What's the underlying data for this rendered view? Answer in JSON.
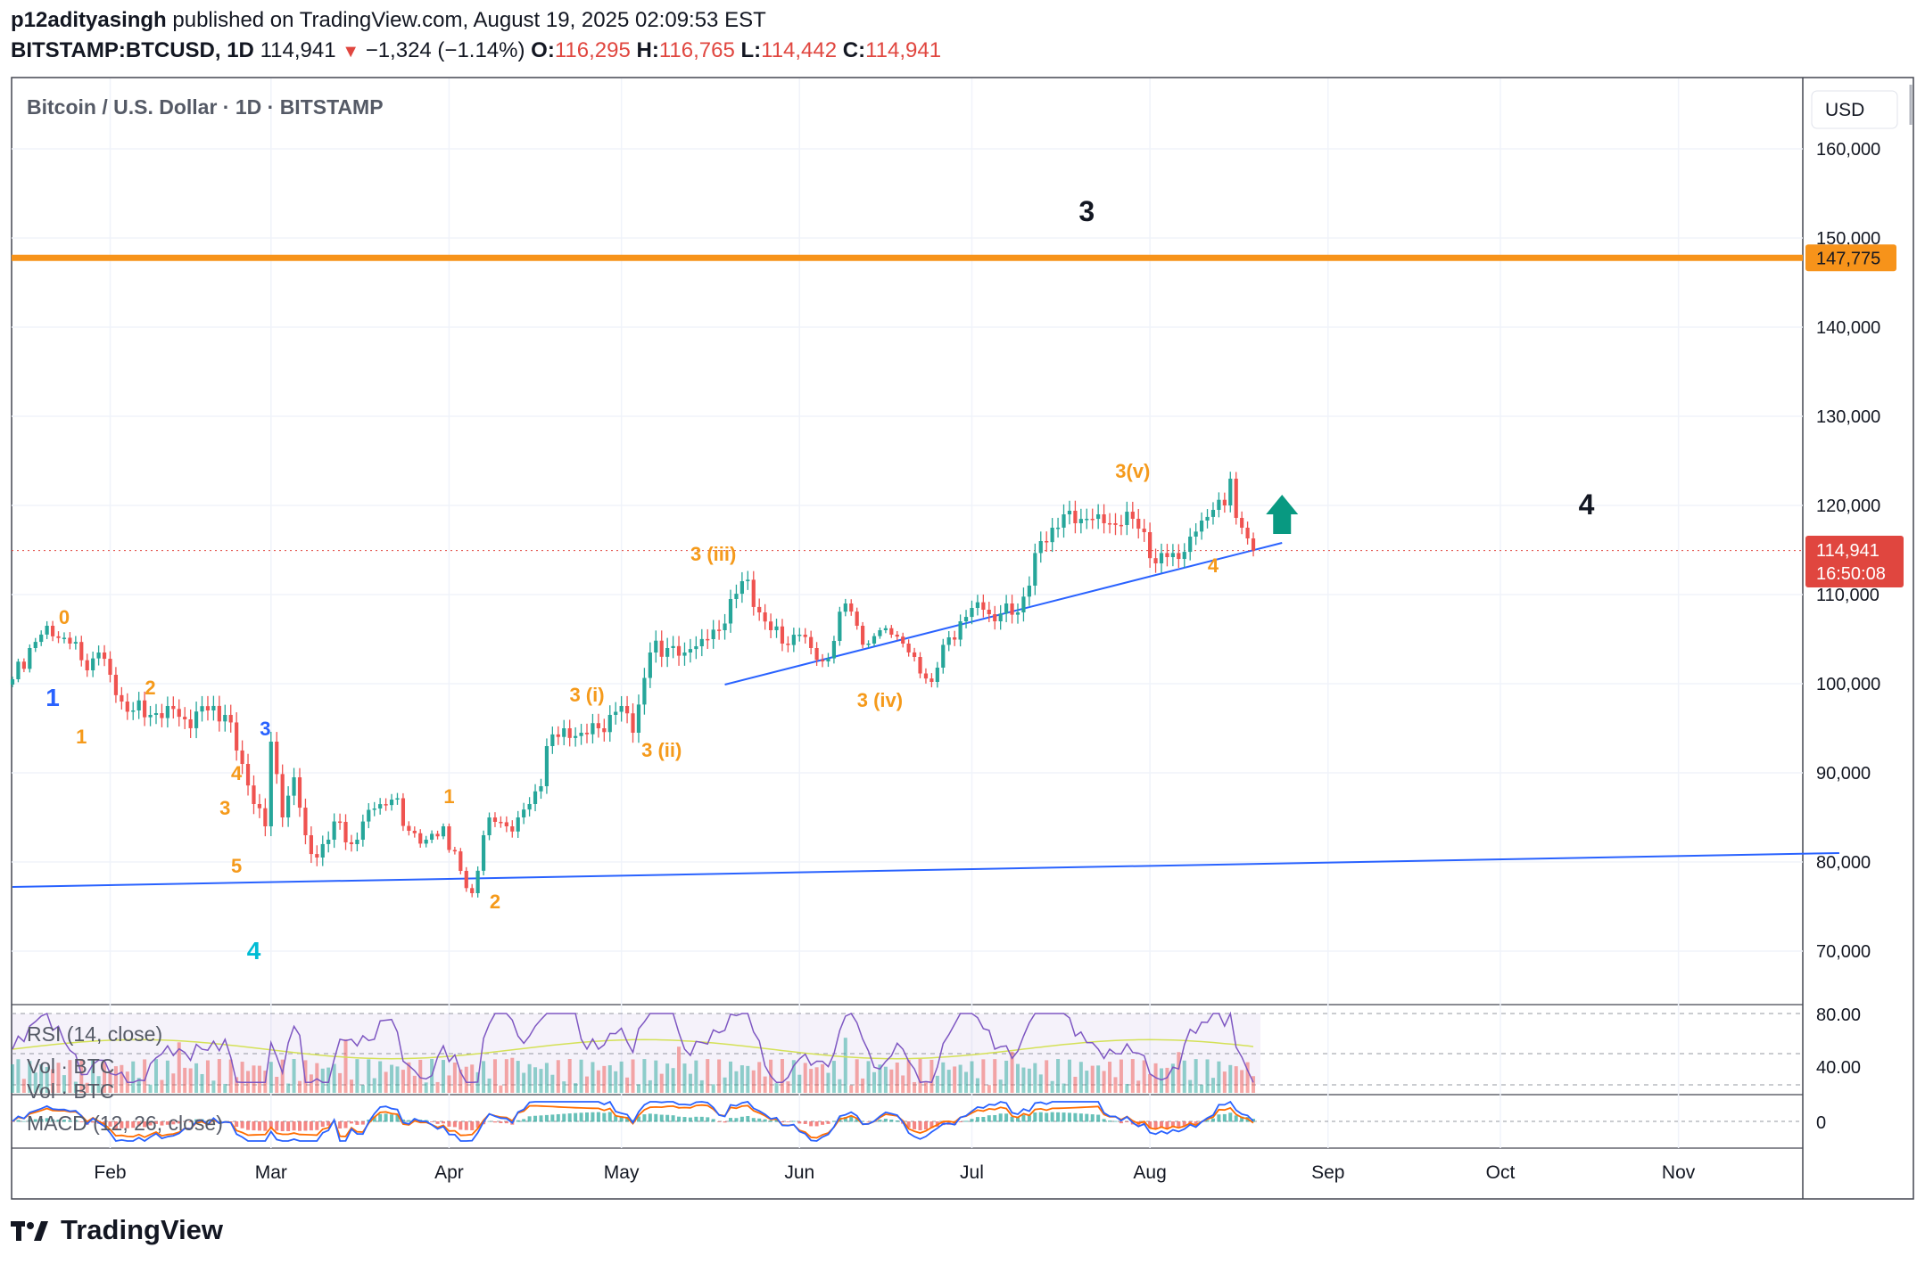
{
  "header": {
    "author": "p12adityasingh",
    "published": "published on TradingView.com, August 19, 2025 02:09:53 EST",
    "symbol": "BITSTAMP:BTCUSD, 1D",
    "last": "114,941",
    "change": "−1,324 (−1.14%)",
    "o_label": "O:",
    "o": "116,295",
    "h_label": "H:",
    "h": "116,765",
    "l_label": "L:",
    "l": "114,442",
    "c_label": "C:",
    "c": "114,941"
  },
  "chart": {
    "title": "Bitcoin / U.S. Dollar · 1D · BITSTAMP",
    "currency": "USD",
    "resistance_label": "147,775",
    "price_label": "114,941",
    "countdown": "16:50:08",
    "rsi_label": "RSI (14, close)",
    "vol_label": "Vol · BTC",
    "vol_label2": "Vol · BTC",
    "macd_label": "MACD (12, 26, close)",
    "rsi_ticks": [
      "80.00",
      "40.00"
    ],
    "macd_tick": "0"
  },
  "footer": {
    "brand": "TradingView"
  },
  "colors": {
    "up": "#26a69a",
    "down": "#ef5350",
    "resistance": "#f7931a",
    "trendline": "#2962ff",
    "wave_orange": "#f59a1b",
    "wave_blue": "#2962ff",
    "wave_cyan": "#00bcd4",
    "arrow": "#089981",
    "rsi": "#7e57c2",
    "rsi_ma": "#d4e157",
    "macd": "#2962ff",
    "signal": "#ff6d00"
  },
  "chart_data": {
    "type": "candlestick",
    "title": "Bitcoin / U.S. Dollar · 1D · BITSTAMP",
    "ylim": [
      62000,
      167000
    ],
    "y_ticks": [
      "160,000",
      "150,000",
      "140,000",
      "130,000",
      "120,000",
      "110,000",
      "100,000",
      "90,000",
      "80,000",
      "70,000"
    ],
    "y_tick_values": [
      160000,
      150000,
      140000,
      130000,
      120000,
      110000,
      100000,
      90000,
      80000,
      70000
    ],
    "x_months": [
      "Feb",
      "Mar",
      "Apr",
      "May",
      "Jun",
      "Jul",
      "Aug",
      "Sep",
      "Oct",
      "Nov"
    ],
    "month_start_day_index": [
      17,
      45,
      76,
      106,
      137,
      167,
      198,
      229,
      259,
      290
    ],
    "first_day_index": 0,
    "last_day_index": 216,
    "axis_end_day_index": 318,
    "anchors": [
      [
        0,
        100500
      ],
      [
        3,
        104000
      ],
      [
        6,
        106500
      ],
      [
        10,
        104500
      ],
      [
        13,
        101500
      ],
      [
        15,
        103500
      ],
      [
        17,
        101000
      ],
      [
        19,
        98000
      ],
      [
        21,
        97000
      ],
      [
        24,
        96500
      ],
      [
        27,
        97500
      ],
      [
        30,
        96000
      ],
      [
        34,
        97000
      ],
      [
        37,
        96500
      ],
      [
        40,
        91000
      ],
      [
        42,
        86500
      ],
      [
        44,
        84000
      ],
      [
        45,
        93500
      ],
      [
        47,
        85000
      ],
      [
        49,
        89500
      ],
      [
        51,
        83000
      ],
      [
        53,
        80500
      ],
      [
        55,
        82500
      ],
      [
        57,
        84500
      ],
      [
        59,
        82000
      ],
      [
        63,
        86000
      ],
      [
        66,
        87000
      ],
      [
        69,
        83500
      ],
      [
        72,
        82500
      ],
      [
        75,
        84000
      ],
      [
        78,
        79000
      ],
      [
        80,
        76500
      ],
      [
        82,
        83000
      ],
      [
        84,
        84500
      ],
      [
        86,
        84000
      ],
      [
        88,
        85000
      ],
      [
        90,
        86500
      ],
      [
        92,
        88500
      ],
      [
        93,
        93000
      ],
      [
        96,
        95000
      ],
      [
        99,
        94500
      ],
      [
        102,
        95000
      ],
      [
        104,
        96500
      ],
      [
        106,
        97500
      ],
      [
        108,
        94500
      ],
      [
        111,
        103500
      ],
      [
        114,
        104000
      ],
      [
        117,
        103500
      ],
      [
        119,
        104200
      ],
      [
        121,
        105000
      ],
      [
        123,
        106000
      ],
      [
        125,
        109500
      ],
      [
        127,
        111500
      ],
      [
        130,
        108000
      ],
      [
        132,
        106000
      ],
      [
        134,
        104500
      ],
      [
        137,
        105500
      ],
      [
        139,
        104000
      ],
      [
        141,
        102500
      ],
      [
        143,
        104800
      ],
      [
        145,
        109000
      ],
      [
        147,
        106500
      ],
      [
        149,
        104500
      ],
      [
        151,
        106000
      ],
      [
        153,
        105500
      ],
      [
        155,
        104500
      ],
      [
        157,
        103000
      ],
      [
        160,
        100200
      ],
      [
        161,
        101800
      ],
      [
        163,
        105200
      ],
      [
        165,
        107000
      ],
      [
        167,
        108500
      ],
      [
        169,
        108300
      ],
      [
        171,
        107000
      ],
      [
        173,
        109000
      ],
      [
        175,
        108000
      ],
      [
        177,
        111000
      ],
      [
        179,
        116000
      ],
      [
        181,
        117500
      ],
      [
        183,
        119000
      ],
      [
        185,
        118000
      ],
      [
        187,
        118500
      ],
      [
        189,
        119000
      ],
      [
        191,
        118000
      ],
      [
        193,
        117800
      ],
      [
        195,
        118500
      ],
      [
        197,
        117000
      ],
      [
        199,
        113500
      ],
      [
        201,
        114200
      ],
      [
        203,
        114000
      ],
      [
        205,
        116500
      ],
      [
        207,
        118300
      ],
      [
        209,
        119500
      ],
      [
        211,
        120000
      ],
      [
        212,
        123000
      ],
      [
        213,
        118600
      ],
      [
        214,
        117500
      ],
      [
        215,
        116300
      ],
      [
        216,
        114941
      ]
    ],
    "resistance_level": 147775,
    "trendlines": [
      {
        "from": [
          0,
          77200
        ],
        "to": [
          318,
          81000
        ]
      },
      {
        "from": [
          124,
          99900
        ],
        "to": [
          221,
          115800
        ]
      }
    ],
    "annotations": [
      {
        "text": "0",
        "day": 9,
        "y": 106700,
        "color": "wave_orange",
        "size": 22
      },
      {
        "text": "1",
        "day": 7,
        "y": 97500,
        "color": "wave_blue",
        "size": 28
      },
      {
        "text": "1",
        "day": 12,
        "y": 93300,
        "color": "wave_orange",
        "size": 22
      },
      {
        "text": "2",
        "day": 24,
        "y": 98800,
        "color": "wave_orange",
        "size": 22
      },
      {
        "text": "3",
        "day": 44,
        "y": 94200,
        "color": "wave_blue",
        "size": 22
      },
      {
        "text": "4",
        "day": 39,
        "y": 89200,
        "color": "wave_orange",
        "size": 22
      },
      {
        "text": "3",
        "day": 37,
        "y": 85300,
        "color": "wave_orange",
        "size": 22
      },
      {
        "text": "5",
        "day": 39,
        "y": 78800,
        "color": "wave_orange",
        "size": 22
      },
      {
        "text": "4",
        "day": 42,
        "y": 69100,
        "color": "wave_cyan",
        "size": 28
      },
      {
        "text": "1",
        "day": 76,
        "y": 86600,
        "color": "wave_orange",
        "size": 22
      },
      {
        "text": "2",
        "day": 84,
        "y": 74800,
        "color": "wave_orange",
        "size": 22
      },
      {
        "text": "3 (i)",
        "day": 100,
        "y": 98000,
        "color": "wave_orange",
        "size": 22
      },
      {
        "text": "3 (ii)",
        "day": 113,
        "y": 91800,
        "color": "wave_orange",
        "size": 22
      },
      {
        "text": "3 (iii)",
        "day": 122,
        "y": 113800,
        "color": "wave_orange",
        "size": 22
      },
      {
        "text": "3 (iv)",
        "day": 151,
        "y": 97400,
        "color": "wave_orange",
        "size": 22
      },
      {
        "text": "3(v)",
        "day": 195,
        "y": 123100,
        "color": "wave_orange",
        "size": 22
      },
      {
        "text": "4",
        "day": 209,
        "y": 112500,
        "color": "wave_orange",
        "size": 22
      },
      {
        "text": "3",
        "day": 187,
        "y": 151900,
        "color": "black",
        "size": 32
      },
      {
        "text": "4",
        "day": 274,
        "y": 119000,
        "color": "black",
        "size": 32
      }
    ],
    "arrow": {
      "day": 221,
      "y": 119000,
      "direction": "up"
    }
  }
}
